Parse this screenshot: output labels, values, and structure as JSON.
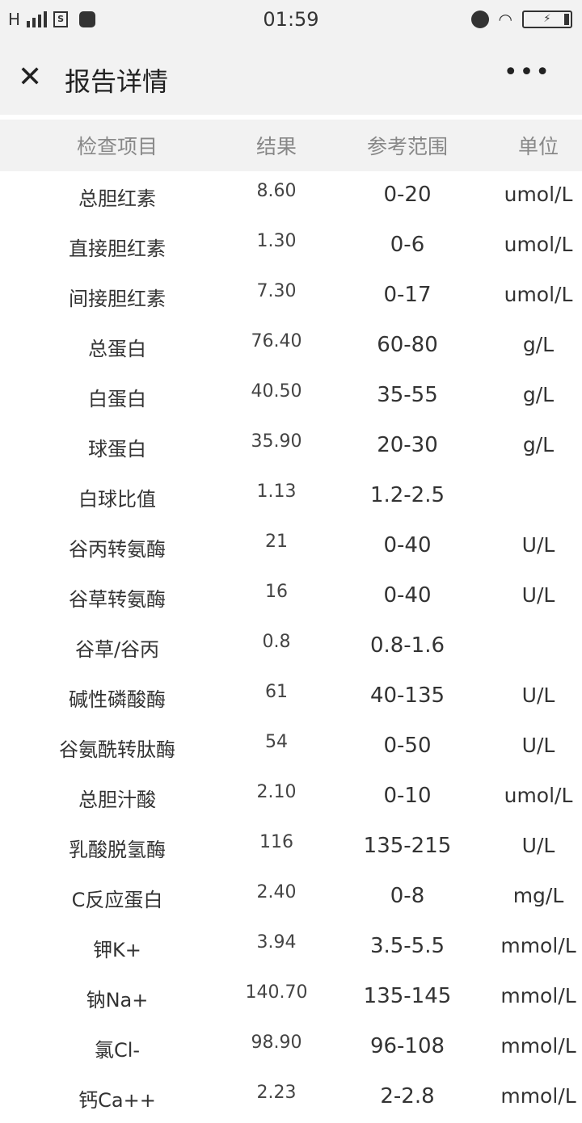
{
  "status_bar": {
    "network": "H",
    "time": "01:59",
    "sim_icon": "sim-s-icon",
    "icons": [
      "alarm-icon",
      "wifi-icon",
      "battery-charging-icon"
    ]
  },
  "nav": {
    "title": "报告详情",
    "close_icon": "close-icon",
    "more_icon": "more-icon"
  },
  "table": {
    "headers": [
      "检查项目",
      "结果",
      "参考范围",
      "单位"
    ],
    "rows": [
      [
        "总胆红素",
        "8.60",
        "0-20",
        "umol/L"
      ],
      [
        "直接胆红素",
        "1.30",
        "0-6",
        "umol/L"
      ],
      [
        "间接胆红素",
        "7.30",
        "0-17",
        "umol/L"
      ],
      [
        "总蛋白",
        "76.40",
        "60-80",
        "g/L"
      ],
      [
        "白蛋白",
        "40.50",
        "35-55",
        "g/L"
      ],
      [
        "球蛋白",
        "35.90",
        "20-30",
        "g/L"
      ],
      [
        "白球比值",
        "1.13",
        "1.2-2.5",
        ""
      ],
      [
        "谷丙转氨酶",
        "21",
        "0-40",
        "U/L"
      ],
      [
        "谷草转氨酶",
        "16",
        "0-40",
        "U/L"
      ],
      [
        "谷草/谷丙",
        "0.8",
        "0.8-1.6",
        ""
      ],
      [
        "碱性磷酸酶",
        "61",
        "40-135",
        "U/L"
      ],
      [
        "谷氨酰转肽酶",
        "54",
        "0-50",
        "U/L"
      ],
      [
        "总胆汁酸",
        "2.10",
        "0-10",
        "umol/L"
      ],
      [
        "乳酸脱氢酶",
        "116",
        "135-215",
        "U/L"
      ],
      [
        "C反应蛋白",
        "2.40",
        "0-8",
        "mg/L"
      ],
      [
        "钾K+",
        "3.94",
        "3.5-5.5",
        "mmol/L"
      ],
      [
        "钠Na+",
        "140.70",
        "135-145",
        "mmol/L"
      ],
      [
        "氯Cl-",
        "98.90",
        "96-108",
        "mmol/L"
      ],
      [
        "钙Ca++",
        "2.23",
        "2-2.8",
        "mmol/L"
      ]
    ]
  }
}
